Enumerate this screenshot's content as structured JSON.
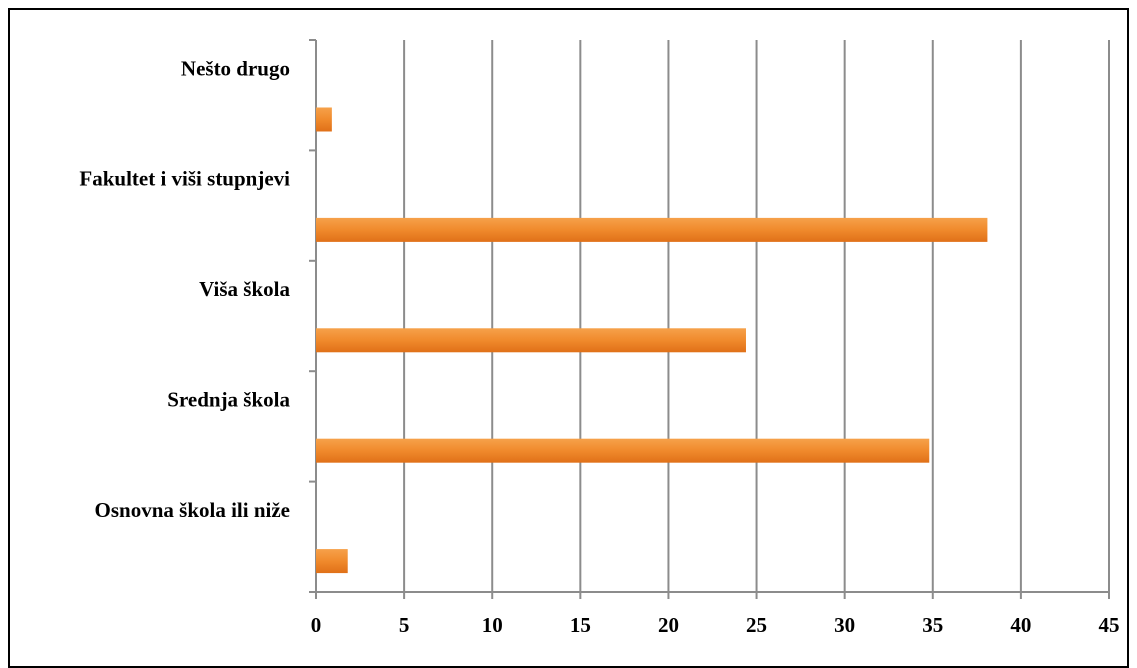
{
  "chart_data": {
    "type": "bar",
    "orientation": "horizontal",
    "title": "",
    "xlabel": "",
    "ylabel": "",
    "categories": [
      "Osnovna škola ili niže",
      "Srednja škola",
      "Viša škola",
      "Fakultet i viši stupnjevi",
      "Nešto drugo"
    ],
    "values": [
      1.8,
      34.8,
      24.4,
      38.1,
      0.9
    ],
    "xlim": [
      0,
      45
    ],
    "xticks": [
      "0",
      "5",
      "10",
      "15",
      "20",
      "25",
      "30",
      "35",
      "40",
      "45"
    ],
    "grid": true,
    "bar_color": "#f08a2c",
    "bar_color_light": "#f6a14a",
    "bar_color_dark": "#e07018"
  }
}
